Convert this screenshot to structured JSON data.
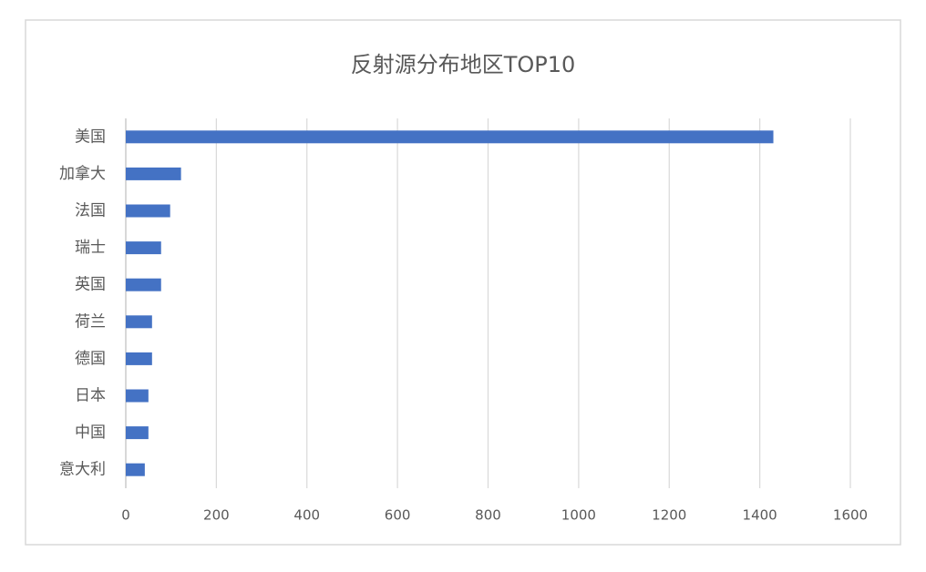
{
  "chart_data": {
    "type": "bar",
    "orientation": "horizontal",
    "title": "反射源分布地区TOP10",
    "categories": [
      "美国",
      "加拿大",
      "法国",
      "瑞士",
      "英国",
      "荷兰",
      "德国",
      "日本",
      "中国",
      "意大利"
    ],
    "values": [
      1430,
      122,
      98,
      78,
      78,
      58,
      58,
      50,
      50,
      42
    ],
    "color": "#4472c4",
    "xlim": [
      0,
      1600
    ],
    "xticks": [
      0,
      200,
      400,
      600,
      800,
      1000,
      1200,
      1400,
      1600
    ],
    "grid": true
  }
}
